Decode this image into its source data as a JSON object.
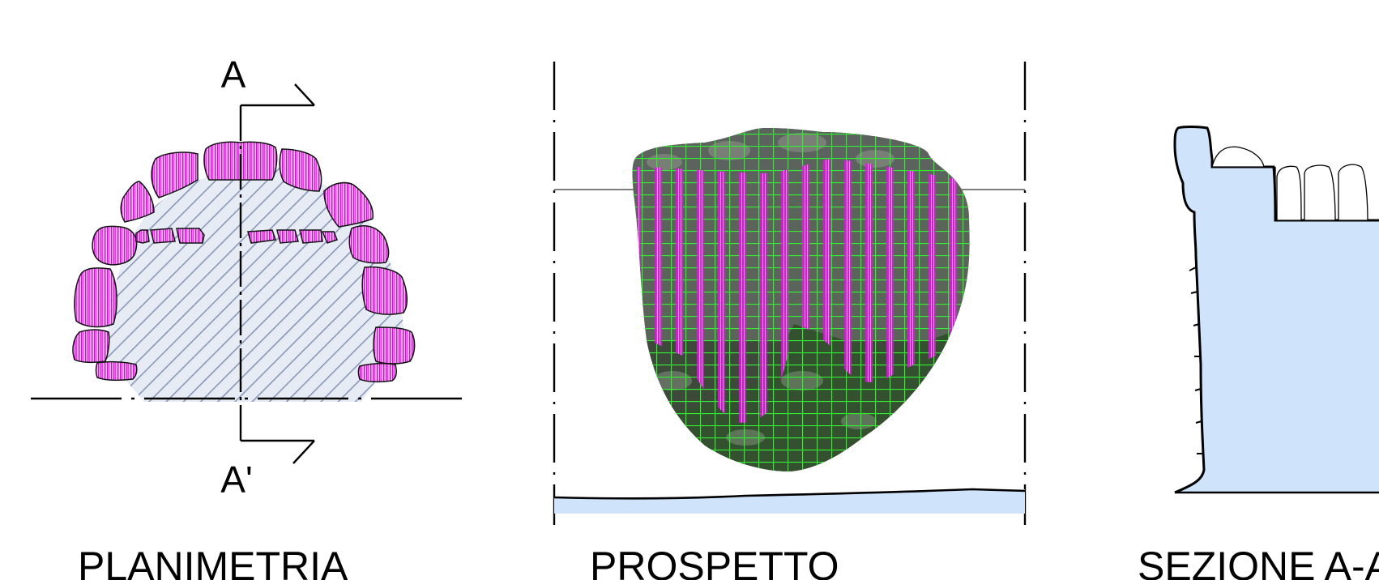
{
  "section_marks": {
    "top": "A",
    "bottom": "A'"
  },
  "captions": {
    "plan": "PLANIMETRIA",
    "elevation": "PROSPETTO",
    "section": "SEZIONE A-A'"
  },
  "colors": {
    "magenta_hatch": "#e000e0",
    "lavender_fill": "#f3c6f3",
    "section_hatch": "#8a98b8",
    "section_fill": "#e6ebf4",
    "light_blue": "#cfe3fb",
    "green_grid": "#33ee33",
    "stone_dark": "#3d4a3a"
  }
}
